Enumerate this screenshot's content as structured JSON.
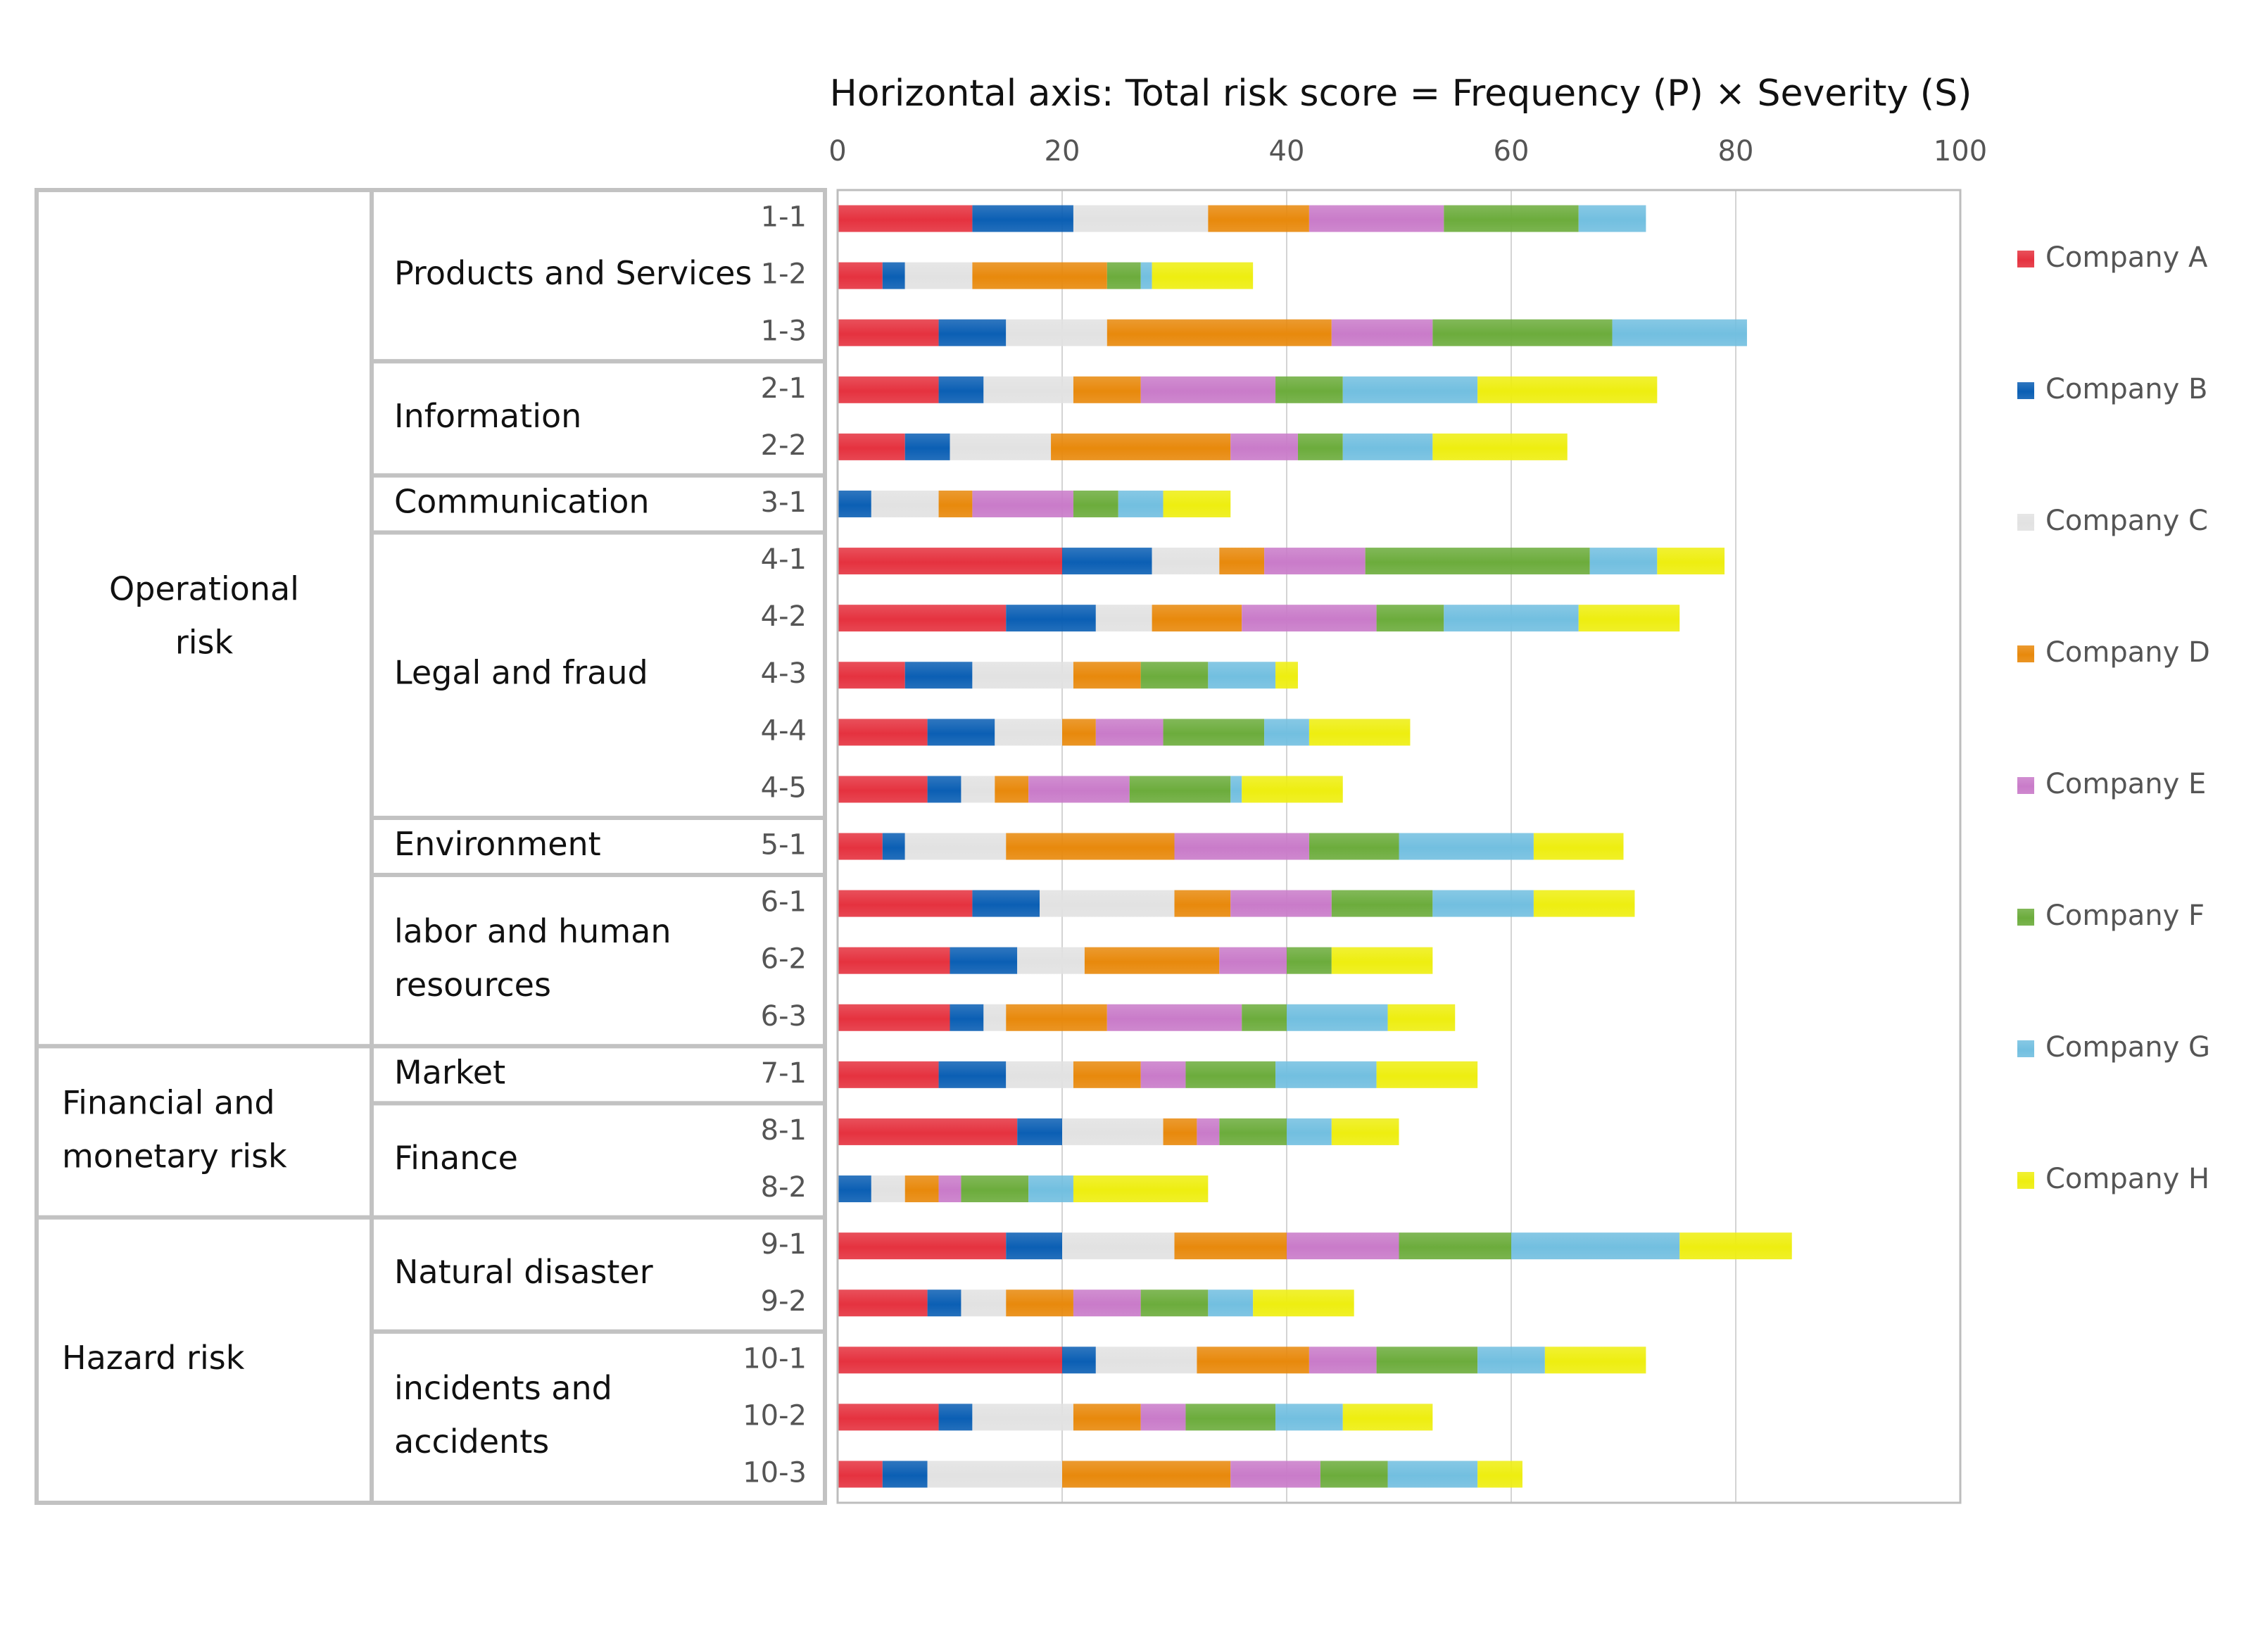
{
  "chart_data": {
    "type": "bar",
    "orientation": "horizontal",
    "stacked": true,
    "title": "Horizontal axis: Total risk score = Frequency (P) × Severity (S)",
    "xlim": [
      0,
      100
    ],
    "x_ticks": [
      0,
      20,
      40,
      60,
      80,
      100
    ],
    "grid": true,
    "legend_position": "right",
    "series": [
      {
        "name": "Company A",
        "color": "#e5323f"
      },
      {
        "name": "Company B",
        "color": "#0b5fb4"
      },
      {
        "name": "Company C",
        "color": "#e2e2e2"
      },
      {
        "name": "Company D",
        "color": "#e8890c"
      },
      {
        "name": "Company E",
        "color": "#c97bc9"
      },
      {
        "name": "Company F",
        "color": "#6cac3c"
      },
      {
        "name": "Company G",
        "color": "#72bfe0"
      },
      {
        "name": "Company H",
        "color": "#eeee10"
      }
    ],
    "categories": [
      "1-1",
      "1-2",
      "1-3",
      "2-1",
      "2-2",
      "3-1",
      "4-1",
      "4-2",
      "4-3",
      "4-4",
      "4-5",
      "5-1",
      "6-1",
      "6-2",
      "6-3",
      "7-1",
      "8-1",
      "8-2",
      "9-1",
      "9-2",
      "10-1",
      "10-2",
      "10-3"
    ],
    "rows": [
      {
        "label": "1-1",
        "values": [
          12,
          9,
          12,
          9,
          12,
          12,
          6,
          0
        ]
      },
      {
        "label": "1-2",
        "values": [
          4,
          2,
          6,
          12,
          0,
          3,
          1,
          9
        ]
      },
      {
        "label": "1-3",
        "values": [
          9,
          6,
          9,
          20,
          9,
          16,
          12,
          0
        ]
      },
      {
        "label": "2-1",
        "values": [
          9,
          4,
          8,
          6,
          12,
          6,
          12,
          16
        ]
      },
      {
        "label": "2-2",
        "values": [
          6,
          4,
          9,
          16,
          6,
          4,
          8,
          12
        ]
      },
      {
        "label": "3-1",
        "values": [
          0,
          3,
          6,
          3,
          9,
          4,
          4,
          6
        ]
      },
      {
        "label": "4-1",
        "values": [
          20,
          8,
          6,
          4,
          9,
          20,
          6,
          6
        ]
      },
      {
        "label": "4-2",
        "values": [
          15,
          8,
          5,
          8,
          12,
          6,
          12,
          9
        ]
      },
      {
        "label": "4-3",
        "values": [
          6,
          6,
          9,
          6,
          0,
          6,
          6,
          2
        ]
      },
      {
        "label": "4-4",
        "values": [
          8,
          6,
          6,
          3,
          6,
          9,
          4,
          9
        ]
      },
      {
        "label": "4-5",
        "values": [
          8,
          3,
          3,
          3,
          9,
          9,
          1,
          9
        ]
      },
      {
        "label": "5-1",
        "values": [
          4,
          2,
          9,
          15,
          12,
          8,
          12,
          8
        ]
      },
      {
        "label": "6-1",
        "values": [
          12,
          6,
          12,
          5,
          9,
          9,
          9,
          9
        ]
      },
      {
        "label": "6-2",
        "values": [
          10,
          6,
          6,
          12,
          6,
          4,
          0,
          9
        ]
      },
      {
        "label": "6-3",
        "values": [
          10,
          3,
          2,
          9,
          12,
          4,
          9,
          6
        ]
      },
      {
        "label": "7-1",
        "values": [
          9,
          6,
          6,
          6,
          4,
          8,
          9,
          9
        ]
      },
      {
        "label": "8-1",
        "values": [
          16,
          4,
          9,
          3,
          2,
          6,
          4,
          6
        ]
      },
      {
        "label": "8-2",
        "values": [
          0,
          3,
          3,
          3,
          2,
          6,
          4,
          12
        ]
      },
      {
        "label": "9-1",
        "values": [
          15,
          5,
          10,
          10,
          10,
          10,
          15,
          10
        ]
      },
      {
        "label": "9-2",
        "values": [
          8,
          3,
          4,
          6,
          6,
          6,
          4,
          9
        ]
      },
      {
        "label": "10-1",
        "values": [
          20,
          3,
          9,
          10,
          6,
          9,
          6,
          9
        ]
      },
      {
        "label": "10-2",
        "values": [
          9,
          3,
          9,
          6,
          4,
          8,
          6,
          8
        ]
      },
      {
        "label": "10-3",
        "values": [
          4,
          4,
          12,
          15,
          8,
          6,
          8,
          4
        ]
      }
    ],
    "groups": [
      {
        "name": "Operational risk",
        "lines": [
          "Operational",
          "risk"
        ],
        "rows": [
          0,
          14
        ],
        "subgroups": [
          {
            "lines": [
              "Products and Services"
            ],
            "rows": [
              0,
              2
            ]
          },
          {
            "lines": [
              "Information"
            ],
            "rows": [
              3,
              4
            ]
          },
          {
            "lines": [
              "Communication"
            ],
            "rows": [
              5,
              5
            ]
          },
          {
            "lines": [
              "Legal and fraud"
            ],
            "rows": [
              6,
              10
            ]
          },
          {
            "lines": [
              "Environment"
            ],
            "rows": [
              11,
              11
            ]
          },
          {
            "lines": [
              "labor and human",
              "resources"
            ],
            "rows": [
              12,
              14
            ]
          }
        ]
      },
      {
        "name": "Financial and monetary risk",
        "lines": [
          "Financial and",
          "monetary risk"
        ],
        "rows": [
          15,
          17
        ],
        "subgroups": [
          {
            "lines": [
              "Market"
            ],
            "rows": [
              15,
              15
            ]
          },
          {
            "lines": [
              "Finance"
            ],
            "rows": [
              16,
              17
            ]
          }
        ]
      },
      {
        "name": "Hazard risk",
        "lines": [
          "Hazard risk"
        ],
        "rows": [
          18,
          22
        ],
        "subgroups": [
          {
            "lines": [
              "Natural disaster"
            ],
            "rows": [
              18,
              19
            ]
          },
          {
            "lines": [
              "incidents and",
              "accidents"
            ],
            "rows": [
              20,
              22
            ]
          }
        ]
      }
    ]
  }
}
